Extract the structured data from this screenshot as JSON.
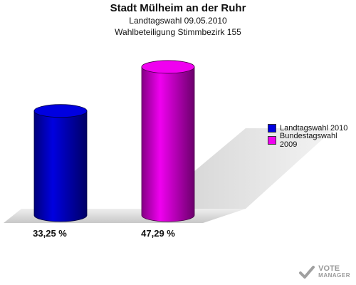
{
  "chart_data": {
    "type": "bar",
    "title": "Stadt Mülheim an der Ruhr",
    "subtitle": "Landtagswahl 09.05.2010",
    "subtitle2": "Wahlbeteiligung Stimmbezirk 155",
    "categories": [
      "Landtagswahl 2010",
      "Bundestagswahl 2009"
    ],
    "values": [
      33.25,
      47.29
    ],
    "value_labels": [
      "33,25 %",
      "47,29 %"
    ],
    "colors": [
      "#0000e0",
      "#f000f0"
    ],
    "ylim": [
      0,
      50
    ],
    "legend": {
      "position": "right",
      "entries": [
        "Landtagswahl 2010",
        "Bundestagswahl 2009"
      ]
    }
  },
  "watermark": {
    "icon": "ballot-check-icon",
    "line1": "VOTE",
    "line2": "MANAGER"
  }
}
